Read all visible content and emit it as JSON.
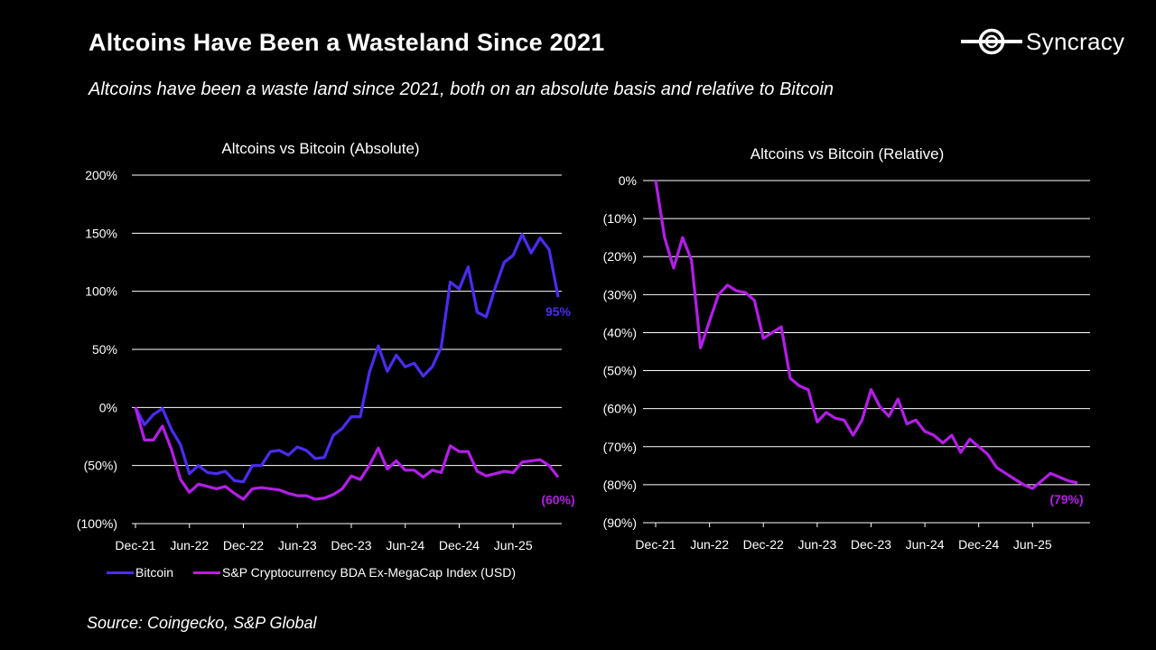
{
  "header": {
    "title": "Altcoins Have Been a Wasteland Since 2021",
    "subtitle": "Altcoins have been a waste land since 2021, both on an absolute basis and relative to Bitcoin",
    "logo_text": "Syncracy"
  },
  "footer": {
    "source": "Source: Coingecko, S&P Global"
  },
  "colors": {
    "bitcoin": "#4b2cf2",
    "index": "#b31ee8",
    "grid": "#ffffff",
    "text": "#ffffff"
  },
  "legend": {
    "items": [
      {
        "label": "Bitcoin",
        "color": "#4b2cf2"
      },
      {
        "label": "S&P Cryptocurrency BDA Ex-MegaCap Index (USD)",
        "color": "#b31ee8"
      }
    ]
  },
  "chart_data": [
    {
      "type": "line",
      "title": "Altcoins vs Bitcoin (Absolute)",
      "x_tick_labels": [
        "Dec-21",
        "Jun-22",
        "Dec-22",
        "Jun-23",
        "Dec-23",
        "Jun-24",
        "Dec-24",
        "Jun-25"
      ],
      "y_tick_labels": [
        "200%",
        "150%",
        "100%",
        "50%",
        "0%",
        "(50%)",
        "(100%)"
      ],
      "ylim": [
        -100,
        200
      ],
      "grid": true,
      "legend_position": "bottom",
      "series": [
        {
          "name": "Bitcoin",
          "color": "#4b2cf2",
          "end_label": "95%",
          "values": [
            0,
            -15,
            -6,
            -1,
            -19,
            -32,
            -57,
            -50,
            -56,
            -57,
            -55,
            -63,
            -64,
            -50,
            -50,
            -38,
            -37,
            -41,
            -34,
            -37,
            -44,
            -43,
            -24,
            -18,
            -8,
            -8,
            30,
            53,
            31,
            45,
            35,
            38,
            27,
            35,
            52,
            108,
            102,
            121,
            82,
            78,
            103,
            125,
            131,
            149,
            133,
            146,
            136,
            95
          ]
        },
        {
          "name": "S&P Cryptocurrency BDA Ex-MegaCap Index (USD)",
          "color": "#b31ee8",
          "end_label": "(60%)",
          "values": [
            0,
            -28,
            -28,
            -16,
            -36,
            -62,
            -73,
            -66,
            -68,
            -70,
            -68,
            -74,
            -79,
            -70,
            -69,
            -70,
            -71,
            -74,
            -76,
            -76,
            -79,
            -78,
            -75,
            -70,
            -59,
            -62,
            -50,
            -35,
            -53,
            -46,
            -54,
            -54,
            -60,
            -54,
            -56,
            -33,
            -38,
            -38,
            -55,
            -59,
            -57,
            -55,
            -56,
            -47,
            -46,
            -45,
            -50,
            -60
          ]
        }
      ]
    },
    {
      "type": "line",
      "title": "Altcoins vs Bitcoin (Relative)",
      "x_tick_labels": [
        "Dec-21",
        "Jun-22",
        "Dec-22",
        "Jun-23",
        "Dec-23",
        "Jun-24",
        "Dec-24",
        "Jun-25"
      ],
      "y_tick_labels": [
        "0%",
        "(10%)",
        "(20%)",
        "(30%)",
        "(40%)",
        "(50%)",
        "(60%)",
        "(70%)",
        "(80%)",
        "(90%)"
      ],
      "ylim": [
        -90,
        0
      ],
      "grid": true,
      "series": [
        {
          "color": "#b31ee8",
          "end_label": "(79%)",
          "values": [
            0,
            -15,
            -23,
            -15,
            -21,
            -44,
            -37,
            -30,
            -27.5,
            -29,
            -29.5,
            -31.5,
            -41.5,
            -40,
            -38.5,
            -52,
            -54,
            -55,
            -63.5,
            -61,
            -62.5,
            -63,
            -67,
            -63,
            -55,
            -59.5,
            -62,
            -57.5,
            -64,
            -63,
            -66,
            -67,
            -69,
            -67,
            -71.5,
            -68,
            -70,
            -72,
            -75.5,
            -77,
            -78.5,
            -80,
            -81,
            -79,
            -77,
            -78,
            -79,
            -79.5
          ]
        }
      ]
    }
  ]
}
